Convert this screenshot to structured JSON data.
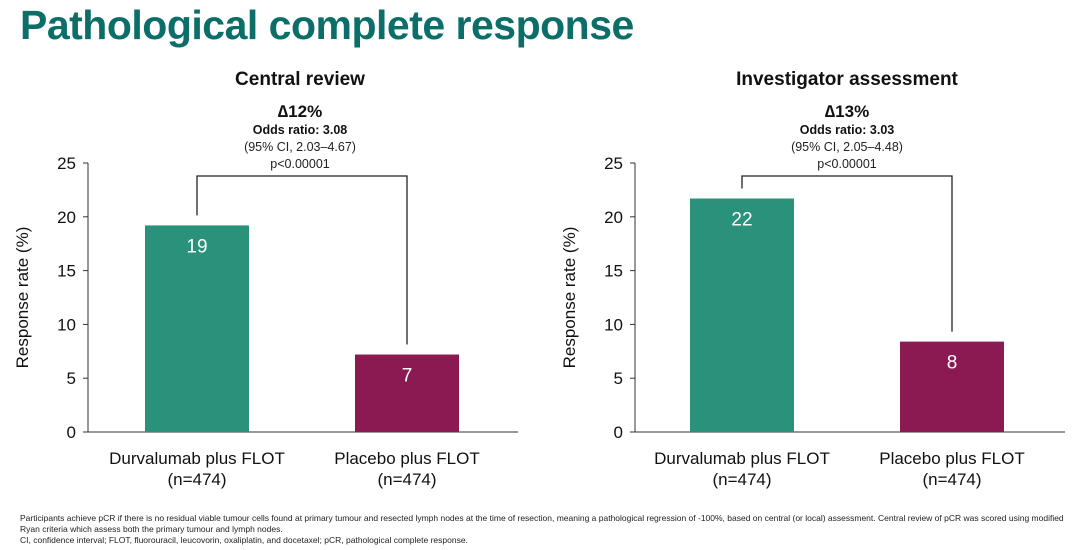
{
  "page_title": "Pathological complete response",
  "colors": {
    "title": "#0b6e69",
    "durvalumab": "#2a927a",
    "placebo": "#8c1a52"
  },
  "chart_data": [
    {
      "type": "bar",
      "title": "Central review",
      "delta": "∆12%",
      "odds_ratio": "Odds ratio: 3.08",
      "ci": "(95% CI, 2.03–4.67)",
      "p_value": "p<0.00001",
      "ylabel": "Response rate (%)",
      "ylim": [
        0,
        25
      ],
      "yticks": [
        0,
        5,
        10,
        15,
        20,
        25
      ],
      "categories": [
        "Durvalumab plus FLOT",
        "Placebo plus FLOT"
      ],
      "category_n": [
        "(n=474)",
        "(n=474)"
      ],
      "values": [
        19.2,
        7.2
      ],
      "labels": [
        "19",
        "7"
      ]
    },
    {
      "type": "bar",
      "title": "Investigator assessment",
      "delta": "∆13%",
      "odds_ratio": "Odds ratio: 3.03",
      "ci": "(95% CI, 2.05–4.48)",
      "p_value": "p<0.00001",
      "ylabel": "Response rate (%)",
      "ylim": [
        0,
        25
      ],
      "yticks": [
        0,
        5,
        10,
        15,
        20,
        25
      ],
      "categories": [
        "Durvalumab plus FLOT",
        "Placebo plus FLOT"
      ],
      "category_n": [
        "(n=474)",
        "(n=474)"
      ],
      "values": [
        21.7,
        8.4
      ],
      "labels": [
        "22",
        "8"
      ]
    }
  ],
  "footnotes": [
    "Participants achieve pCR if there is no residual viable tumour cells found at primary tumour and resected lymph nodes at the time of resection, meaning a pathological regression of -100%, based on central (or local) assessment. Central review of pCR was scored using modified Ryan criteria which assess both the primary tumour and lymph nodes.",
    "CI, confidence interval; FLOT, fluorouracil, leucovorin, oxaliplatin, and docetaxel; pCR, pathological complete response."
  ]
}
